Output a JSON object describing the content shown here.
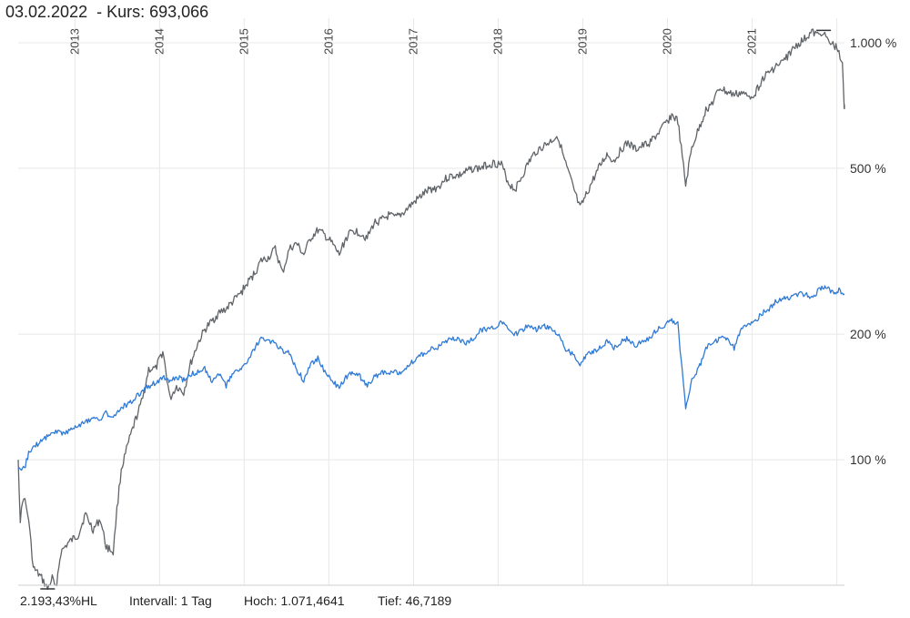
{
  "header": {
    "date": "03.02.2022",
    "kurs_text": "  - Kurs: 693,066"
  },
  "footer": {
    "performance": "2.193,43%HL",
    "interval": "Intervall: 1 Tag",
    "high": "Hoch: 1.071,4641",
    "low": "Tief: 46,7189"
  },
  "colors": {
    "series_main": "#606468",
    "series_compare": "#2f7ad6",
    "grid": "#e8e8e8"
  },
  "chart_data": {
    "type": "line",
    "y_scale": "log",
    "ylim": [
      50,
      1100
    ],
    "xlim": [
      "2012-05-01",
      "2022-02-03"
    ],
    "y_ticks": [
      {
        "value": 100,
        "label": "100 %"
      },
      {
        "value": 200,
        "label": "200 %"
      },
      {
        "value": 500,
        "label": "500 %"
      },
      {
        "value": 1000,
        "label": "1.000 %"
      }
    ],
    "x_ticks": [
      {
        "date": "2013-01-01",
        "label": "2013"
      },
      {
        "date": "2014-01-01",
        "label": "2014"
      },
      {
        "date": "2015-01-01",
        "label": "2015"
      },
      {
        "date": "2016-01-01",
        "label": "2016"
      },
      {
        "date": "2017-01-01",
        "label": "2017"
      },
      {
        "date": "2018-01-01",
        "label": "2018"
      },
      {
        "date": "2019-01-01",
        "label": "2019"
      },
      {
        "date": "2020-01-01",
        "label": "2020"
      },
      {
        "date": "2021-01-01",
        "label": "2021"
      }
    ],
    "grid": true,
    "legend": "none",
    "series": [
      {
        "key": "main",
        "points": [
          [
            "2012-05-01",
            100
          ],
          [
            "2012-05-10",
            72
          ],
          [
            "2012-05-25",
            82
          ],
          [
            "2012-06-15",
            72
          ],
          [
            "2012-07-05",
            55
          ],
          [
            "2012-08-10",
            52
          ],
          [
            "2012-09-05",
            49
          ],
          [
            "2012-09-25",
            52
          ],
          [
            "2012-10-10",
            49
          ],
          [
            "2012-11-01",
            60
          ],
          [
            "2012-12-01",
            63
          ],
          [
            "2013-01-15",
            66
          ],
          [
            "2013-02-15",
            74
          ],
          [
            "2013-03-20",
            68
          ],
          [
            "2013-04-20",
            72
          ],
          [
            "2013-05-15",
            62
          ],
          [
            "2013-06-15",
            60
          ],
          [
            "2013-07-01",
            76
          ],
          [
            "2013-07-20",
            95
          ],
          [
            "2013-08-20",
            110
          ],
          [
            "2013-09-20",
            125
          ],
          [
            "2013-10-20",
            140
          ],
          [
            "2013-11-15",
            165
          ],
          [
            "2013-12-15",
            165
          ],
          [
            "2014-01-15",
            182
          ],
          [
            "2014-02-15",
            140
          ],
          [
            "2014-03-15",
            150
          ],
          [
            "2014-04-15",
            145
          ],
          [
            "2014-05-15",
            170
          ],
          [
            "2014-06-15",
            190
          ],
          [
            "2014-07-15",
            205
          ],
          [
            "2014-08-15",
            215
          ],
          [
            "2014-09-15",
            225
          ],
          [
            "2014-10-15",
            230
          ],
          [
            "2014-11-15",
            240
          ],
          [
            "2014-12-15",
            250
          ],
          [
            "2015-01-15",
            265
          ],
          [
            "2015-02-15",
            280
          ],
          [
            "2015-03-15",
            300
          ],
          [
            "2015-04-15",
            305
          ],
          [
            "2015-05-15",
            320
          ],
          [
            "2015-06-15",
            280
          ],
          [
            "2015-07-15",
            320
          ],
          [
            "2015-08-15",
            330
          ],
          [
            "2015-09-15",
            310
          ],
          [
            "2015-10-15",
            340
          ],
          [
            "2015-11-15",
            355
          ],
          [
            "2015-12-15",
            345
          ],
          [
            "2016-01-15",
            330
          ],
          [
            "2016-02-15",
            310
          ],
          [
            "2016-03-15",
            340
          ],
          [
            "2016-04-15",
            355
          ],
          [
            "2016-05-15",
            350
          ],
          [
            "2016-06-15",
            340
          ],
          [
            "2016-07-15",
            370
          ],
          [
            "2016-08-15",
            375
          ],
          [
            "2016-09-15",
            385
          ],
          [
            "2016-10-15",
            380
          ],
          [
            "2016-11-15",
            390
          ],
          [
            "2016-12-15",
            405
          ],
          [
            "2017-01-15",
            420
          ],
          [
            "2017-02-15",
            435
          ],
          [
            "2017-03-15",
            445
          ],
          [
            "2017-04-15",
            450
          ],
          [
            "2017-05-15",
            470
          ],
          [
            "2017-06-15",
            480
          ],
          [
            "2017-07-15",
            480
          ],
          [
            "2017-08-15",
            490
          ],
          [
            "2017-09-15",
            500
          ],
          [
            "2017-10-15",
            500
          ],
          [
            "2017-11-15",
            510
          ],
          [
            "2017-12-15",
            515
          ],
          [
            "2018-01-15",
            510
          ],
          [
            "2018-02-15",
            460
          ],
          [
            "2018-03-15",
            445
          ],
          [
            "2018-04-15",
            480
          ],
          [
            "2018-05-15",
            520
          ],
          [
            "2018-06-15",
            550
          ],
          [
            "2018-07-15",
            565
          ],
          [
            "2018-08-15",
            580
          ],
          [
            "2018-09-15",
            600
          ],
          [
            "2018-10-15",
            520
          ],
          [
            "2018-11-15",
            460
          ],
          [
            "2018-12-20",
            400
          ],
          [
            "2019-01-15",
            430
          ],
          [
            "2019-02-15",
            470
          ],
          [
            "2019-03-15",
            505
          ],
          [
            "2019-04-15",
            540
          ],
          [
            "2019-05-15",
            520
          ],
          [
            "2019-06-15",
            555
          ],
          [
            "2019-07-15",
            575
          ],
          [
            "2019-08-15",
            555
          ],
          [
            "2019-09-15",
            565
          ],
          [
            "2019-10-15",
            575
          ],
          [
            "2019-11-15",
            600
          ],
          [
            "2019-12-15",
            630
          ],
          [
            "2020-01-20",
            670
          ],
          [
            "2020-02-15",
            650
          ],
          [
            "2020-03-20",
            455
          ],
          [
            "2020-04-15",
            560
          ],
          [
            "2020-05-15",
            620
          ],
          [
            "2020-06-15",
            690
          ],
          [
            "2020-07-15",
            720
          ],
          [
            "2020-08-15",
            780
          ],
          [
            "2020-09-15",
            760
          ],
          [
            "2020-10-15",
            750
          ],
          [
            "2020-11-15",
            760
          ],
          [
            "2020-12-15",
            740
          ],
          [
            "2021-01-15",
            760
          ],
          [
            "2021-02-15",
            820
          ],
          [
            "2021-03-15",
            850
          ],
          [
            "2021-04-15",
            880
          ],
          [
            "2021-05-15",
            900
          ],
          [
            "2021-06-15",
            950
          ],
          [
            "2021-07-15",
            990
          ],
          [
            "2021-08-15",
            1020
          ],
          [
            "2021-09-15",
            1060
          ],
          [
            "2021-10-15",
            1040
          ],
          [
            "2021-11-05",
            1071
          ],
          [
            "2021-11-25",
            1000
          ],
          [
            "2021-12-15",
            990
          ],
          [
            "2022-01-10",
            960
          ],
          [
            "2022-01-25",
            880
          ],
          [
            "2022-02-02",
            700
          ],
          [
            "2022-02-03",
            693
          ]
        ]
      },
      {
        "key": "compare",
        "points": [
          [
            "2012-05-01",
            95
          ],
          [
            "2012-05-15",
            93
          ],
          [
            "2012-06-01",
            97
          ],
          [
            "2012-06-15",
            104
          ],
          [
            "2012-07-15",
            108
          ],
          [
            "2012-08-15",
            112
          ],
          [
            "2012-09-15",
            115
          ],
          [
            "2012-10-15",
            117
          ],
          [
            "2012-11-15",
            116
          ],
          [
            "2012-12-15",
            118
          ],
          [
            "2013-01-15",
            121
          ],
          [
            "2013-02-15",
            123
          ],
          [
            "2013-03-15",
            126
          ],
          [
            "2013-04-15",
            124
          ],
          [
            "2013-05-15",
            130
          ],
          [
            "2013-06-15",
            125
          ],
          [
            "2013-07-15",
            133
          ],
          [
            "2013-08-15",
            136
          ],
          [
            "2013-09-15",
            140
          ],
          [
            "2013-10-15",
            146
          ],
          [
            "2013-11-15",
            150
          ],
          [
            "2013-12-15",
            153
          ],
          [
            "2014-01-15",
            158
          ],
          [
            "2014-02-15",
            153
          ],
          [
            "2014-03-15",
            158
          ],
          [
            "2014-04-15",
            155
          ],
          [
            "2014-05-15",
            160
          ],
          [
            "2014-06-15",
            162
          ],
          [
            "2014-07-15",
            165
          ],
          [
            "2014-08-15",
            155
          ],
          [
            "2014-09-15",
            160
          ],
          [
            "2014-10-15",
            150
          ],
          [
            "2014-11-15",
            162
          ],
          [
            "2014-12-15",
            165
          ],
          [
            "2015-01-15",
            170
          ],
          [
            "2015-02-15",
            185
          ],
          [
            "2015-03-15",
            195
          ],
          [
            "2015-04-15",
            192
          ],
          [
            "2015-05-15",
            190
          ],
          [
            "2015-06-15",
            182
          ],
          [
            "2015-07-15",
            180
          ],
          [
            "2015-08-15",
            165
          ],
          [
            "2015-09-15",
            155
          ],
          [
            "2015-10-15",
            170
          ],
          [
            "2015-11-15",
            175
          ],
          [
            "2015-12-15",
            162
          ],
          [
            "2016-01-15",
            155
          ],
          [
            "2016-02-15",
            148
          ],
          [
            "2016-03-15",
            158
          ],
          [
            "2016-04-15",
            162
          ],
          [
            "2016-05-15",
            158
          ],
          [
            "2016-06-15",
            150
          ],
          [
            "2016-07-15",
            158
          ],
          [
            "2016-08-15",
            162
          ],
          [
            "2016-09-15",
            162
          ],
          [
            "2016-10-15",
            162
          ],
          [
            "2016-11-15",
            163
          ],
          [
            "2016-12-15",
            170
          ],
          [
            "2017-01-15",
            175
          ],
          [
            "2017-02-15",
            180
          ],
          [
            "2017-03-15",
            185
          ],
          [
            "2017-04-15",
            185
          ],
          [
            "2017-05-15",
            192
          ],
          [
            "2017-06-15",
            195
          ],
          [
            "2017-07-15",
            195
          ],
          [
            "2017-08-15",
            190
          ],
          [
            "2017-09-15",
            195
          ],
          [
            "2017-10-15",
            205
          ],
          [
            "2017-11-15",
            205
          ],
          [
            "2017-12-15",
            208
          ],
          [
            "2018-01-15",
            215
          ],
          [
            "2018-02-15",
            205
          ],
          [
            "2018-03-15",
            200
          ],
          [
            "2018-04-15",
            205
          ],
          [
            "2018-05-15",
            210
          ],
          [
            "2018-06-15",
            205
          ],
          [
            "2018-07-15",
            210
          ],
          [
            "2018-08-15",
            205
          ],
          [
            "2018-09-15",
            200
          ],
          [
            "2018-10-15",
            185
          ],
          [
            "2018-11-15",
            180
          ],
          [
            "2018-12-20",
            168
          ],
          [
            "2019-01-15",
            178
          ],
          [
            "2019-02-15",
            182
          ],
          [
            "2019-03-15",
            185
          ],
          [
            "2019-04-15",
            192
          ],
          [
            "2019-05-15",
            185
          ],
          [
            "2019-06-15",
            192
          ],
          [
            "2019-07-15",
            195
          ],
          [
            "2019-08-15",
            188
          ],
          [
            "2019-09-15",
            192
          ],
          [
            "2019-10-15",
            195
          ],
          [
            "2019-11-15",
            205
          ],
          [
            "2019-12-15",
            210
          ],
          [
            "2020-01-20",
            215
          ],
          [
            "2020-02-15",
            212
          ],
          [
            "2020-03-20",
            132
          ],
          [
            "2020-04-15",
            155
          ],
          [
            "2020-05-15",
            165
          ],
          [
            "2020-06-15",
            185
          ],
          [
            "2020-07-15",
            190
          ],
          [
            "2020-08-15",
            195
          ],
          [
            "2020-09-15",
            195
          ],
          [
            "2020-10-15",
            185
          ],
          [
            "2020-11-15",
            205
          ],
          [
            "2020-12-15",
            212
          ],
          [
            "2021-01-15",
            215
          ],
          [
            "2021-02-15",
            225
          ],
          [
            "2021-03-15",
            230
          ],
          [
            "2021-04-15",
            240
          ],
          [
            "2021-05-15",
            245
          ],
          [
            "2021-06-15",
            245
          ],
          [
            "2021-07-15",
            250
          ],
          [
            "2021-08-15",
            250
          ],
          [
            "2021-09-15",
            245
          ],
          [
            "2021-10-15",
            255
          ],
          [
            "2021-11-15",
            260
          ],
          [
            "2021-12-15",
            250
          ],
          [
            "2022-01-10",
            255
          ],
          [
            "2022-01-25",
            248
          ],
          [
            "2022-02-03",
            250
          ]
        ]
      }
    ]
  }
}
